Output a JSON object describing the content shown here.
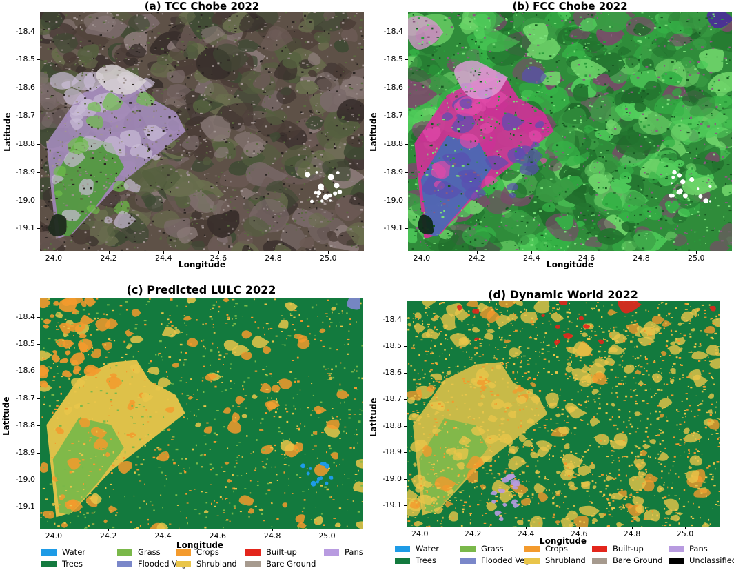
{
  "panels": [
    {
      "id": "a",
      "title": "(a) TCC Chobe 2022",
      "kind": "tcc"
    },
    {
      "id": "b",
      "title": "(b) FCC Chobe 2022",
      "kind": "fcc"
    },
    {
      "id": "c",
      "title": "(c) Predicted LULC 2022",
      "kind": "lulc"
    },
    {
      "id": "d",
      "title": "(d) Dynamic World 2022",
      "kind": "lulc_dw"
    }
  ],
  "axes": {
    "xlabel": "Longitude",
    "ylabel": "Latitude",
    "x_ticks": [
      "24.0",
      "24.2",
      "24.4",
      "24.6",
      "24.8",
      "25.0"
    ],
    "y_ticks": [
      "-18.4",
      "-18.5",
      "-18.6",
      "-18.7",
      "-18.8",
      "-18.9",
      "-19.0",
      "-19.1"
    ],
    "x_range": [
      23.95,
      25.13
    ],
    "y_range": [
      -19.18,
      -18.33
    ]
  },
  "legend_c": [
    {
      "label": "Water",
      "color": "#1e9be6"
    },
    {
      "label": "Grass",
      "color": "#7ab84a"
    },
    {
      "label": "Crops",
      "color": "#f39a2d"
    },
    {
      "label": "Built-up",
      "color": "#e3261c"
    },
    {
      "label": "Pans",
      "color": "#b89be0"
    },
    {
      "label": "Trees",
      "color": "#137a3e"
    },
    {
      "label": "Flooded Veg",
      "color": "#7a87c9"
    },
    {
      "label": "Shrubland",
      "color": "#e9c54a"
    },
    {
      "label": "Bare Ground",
      "color": "#a69a8e"
    }
  ],
  "legend_d": [
    {
      "label": "Water",
      "color": "#1e9be6"
    },
    {
      "label": "Grass",
      "color": "#7ab84a"
    },
    {
      "label": "Crops",
      "color": "#f39a2d"
    },
    {
      "label": "Built-up",
      "color": "#e3261c"
    },
    {
      "label": "Pans",
      "color": "#b89be0"
    },
    {
      "label": "Trees",
      "color": "#137a3e"
    },
    {
      "label": "Flooded Veg",
      "color": "#7a87c9"
    },
    {
      "label": "Shrubland",
      "color": "#e9c54a"
    },
    {
      "label": "Bare Ground",
      "color": "#a69a8e"
    },
    {
      "label": "Unclassified",
      "color": "#000000"
    }
  ]
}
